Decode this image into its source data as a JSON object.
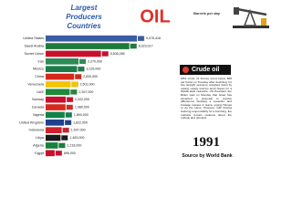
{
  "title_lines": [
    "Largest",
    "Producers",
    "Countries"
  ],
  "chart_data": {
    "type": "bar",
    "orientation": "horizontal",
    "title": "OIL",
    "subtitle": "Barrels per day",
    "categories": [
      "United States",
      "Saudi Arabia",
      "Soviet Union",
      "Iran",
      "Mexico",
      "China",
      "Venezuela",
      "UAE",
      "Norway",
      "Canada",
      "Nigeria",
      "United Kingdom",
      "Indonesia",
      "Libya",
      "Algeria",
      "Egypt"
    ],
    "values": [
      9076416,
      8323017,
      5508285,
      3270000,
      3126000,
      2830000,
      2501000,
      2397000,
      2002000,
      1980000,
      1890000,
      1822000,
      1597000,
      1483000,
      1218000,
      896000
    ],
    "value_labels": [
      "9,076,416",
      "8,323,017",
      "5,508,285",
      "3,270,000",
      "3,126,000",
      "2,830,000",
      "2,501,000",
      "2,397,000",
      "2,002,000",
      "1,980,000",
      "1,890,000",
      "1,822,000",
      "1,597,000",
      "1,483,000",
      "1,218,000",
      "896,000"
    ],
    "colors": [
      "#3b5ba5",
      "#1e7a3c",
      "#c8102e",
      "#2e8b57",
      "#1f7a4a",
      "#d62718",
      "#f2c500",
      "#1e8a3a",
      "#c8102e",
      "#d52b1e",
      "#12824d",
      "#1f3f8f",
      "#d0202a",
      "#1a1a1a",
      "#1a7f3c",
      "#c8102e"
    ]
  },
  "annotation": {
    "heading": "Crude oil",
    "text": "98% crude oil futures trend below $58 per barrel on Tuesday after declining, for two straight sessions, weighed down by easing supply worries amid hopes for a Middle East ceasefire. US President Joe Biden said on Monday that Israel has accepted a proposal to resolve differences blocking a ceasefire and hostage release in Gaza, urging Hamas to do the same. However, with Russia claiming responsibility for a bombing, the markets remain cautious about the outlook and demand."
  },
  "year": "1991",
  "source": "Source by World Bank"
}
